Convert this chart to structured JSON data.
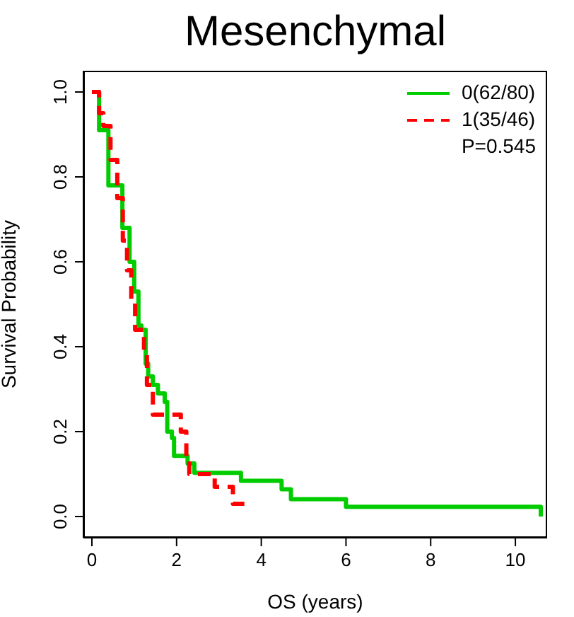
{
  "chart_data": {
    "type": "step",
    "title": "Mesenchymal",
    "xlabel": "OS (years)",
    "ylabel": "Survival Probability",
    "xlim": [
      -0.2,
      10.75
    ],
    "xticks": [
      0,
      2,
      4,
      6,
      8,
      10
    ],
    "ylim": [
      -0.05,
      1.05
    ],
    "yticks": [
      {
        "value": 0,
        "label": "0.0"
      },
      {
        "value": 0.2,
        "label": "0.2"
      },
      {
        "value": 0.4,
        "label": "0.4"
      },
      {
        "value": 0.6,
        "label": "0.6"
      },
      {
        "value": 0.8,
        "label": "0.8"
      },
      {
        "value": 1,
        "label": "1.0"
      }
    ],
    "series": [
      {
        "name": "0(62/80)",
        "color": "#00cc00",
        "line_style": "solid",
        "x": [
          0,
          0.17,
          0.39,
          0.72,
          0.89,
          1.0,
          1.1,
          1.17,
          1.27,
          1.33,
          1.44,
          1.56,
          1.72,
          1.78,
          1.89,
          1.94,
          2.26,
          2.42,
          3.52,
          4.48,
          4.7,
          6.0,
          10.6
        ],
        "values": [
          1.0,
          0.91,
          0.78,
          0.68,
          0.6,
          0.53,
          0.45,
          0.44,
          0.36,
          0.33,
          0.31,
          0.29,
          0.27,
          0.2,
          0.185,
          0.143,
          0.125,
          0.103,
          0.084,
          0.064,
          0.041,
          0.023,
          0.0
        ]
      },
      {
        "name": "1(35/46)",
        "color": "#ff0000",
        "line_style": "dashed",
        "x": [
          0,
          0.17,
          0.27,
          0.44,
          0.6,
          0.73,
          0.83,
          0.93,
          1.02,
          1.23,
          1.3,
          1.44,
          2.1,
          2.23,
          2.3,
          2.9,
          3.33,
          3.6
        ],
        "values": [
          1.0,
          0.95,
          0.92,
          0.84,
          0.75,
          0.65,
          0.58,
          0.51,
          0.44,
          0.39,
          0.31,
          0.24,
          0.2,
          0.14,
          0.1,
          0.07,
          0.03,
          0.03
        ]
      }
    ],
    "annotations": [
      "P=0.545"
    ],
    "legend": "top right",
    "grid": false,
    "marker": "none"
  }
}
